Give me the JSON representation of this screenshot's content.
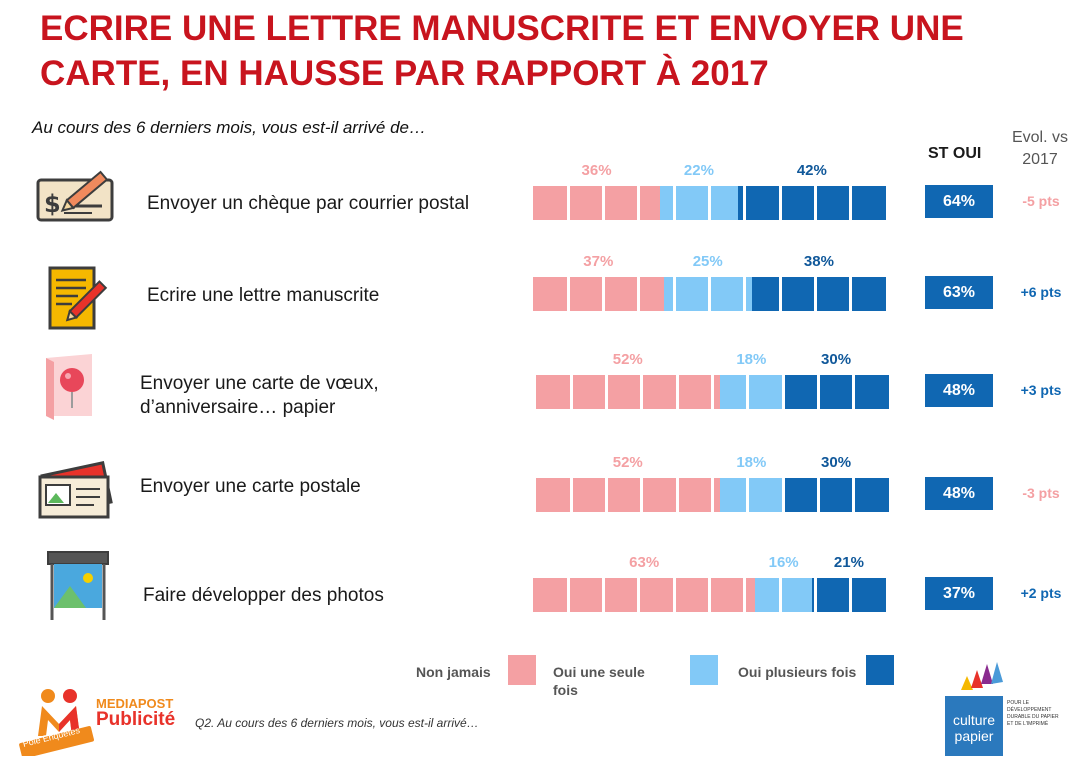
{
  "title": "ECRIRE UNE LETTRE MANUSCRITE ET ENVOYER UNE CARTE, EN HAUSSE PAR RAPPORT À 2017",
  "subtitle": "Au cours des 6 derniers mois, vous est-il arrivé de…",
  "columns": {
    "st_oui": "ST OUI",
    "evol": "Evol. vs 2017"
  },
  "colors": {
    "jamais": "#f4a0a3",
    "une_fois": "#82c9f7",
    "plusieurs": "#1067b2",
    "title": "#c8141e",
    "neg": "#f4a0a3",
    "pos": "#1067b2"
  },
  "rows": [
    {
      "label": "Envoyer un chèque par courrier postal",
      "icon": "check-pen-icon",
      "jamais": 36,
      "une_fois": 22,
      "plusieurs": 42,
      "jamais_label": "36%",
      "une_fois_label": "22%",
      "plusieurs_label": "42%",
      "st_oui": "64%",
      "evol": "-5 pts",
      "evol_sign": "neg"
    },
    {
      "label": "Ecrire une lettre manuscrite",
      "icon": "letter-pencil-icon",
      "jamais": 37,
      "une_fois": 25,
      "plusieurs": 38,
      "jamais_label": "37%",
      "une_fois_label": "25%",
      "plusieurs_label": "38%",
      "st_oui": "63%",
      "evol": "+6 pts",
      "evol_sign": "pos"
    },
    {
      "label": "Envoyer une carte de vœux,\nd’anniversaire… papier",
      "icon": "greeting-card-icon",
      "jamais": 52,
      "une_fois": 18,
      "plusieurs": 30,
      "jamais_label": "52%",
      "une_fois_label": "18%",
      "plusieurs_label": "30%",
      "st_oui": "48%",
      "evol": "+3 pts",
      "evol_sign": "pos"
    },
    {
      "label": "Envoyer une carte postale",
      "icon": "postcard-icon",
      "jamais": 52,
      "une_fois": 18,
      "plusieurs": 30,
      "jamais_label": "52%",
      "une_fois_label": "18%",
      "plusieurs_label": "30%",
      "st_oui": "48%",
      "evol": "-3 pts",
      "evol_sign": "neg"
    },
    {
      "label": "Faire développer des photos",
      "icon": "photo-print-icon",
      "jamais": 63,
      "une_fois": 16,
      "plusieurs": 21,
      "jamais_label": "63%",
      "une_fois_label": "16%",
      "plusieurs_label": "21%",
      "st_oui": "37%",
      "evol": "+2 pts",
      "evol_sign": "pos"
    }
  ],
  "chart_data": {
    "type": "bar",
    "stacked": true,
    "orientation": "horizontal",
    "categories": [
      "Envoyer un chèque par courrier postal",
      "Ecrire une lettre manuscrite",
      "Envoyer une carte de vœux, d’anniversaire… papier",
      "Envoyer une carte postale",
      "Faire développer des photos"
    ],
    "series": [
      {
        "name": "Non jamais",
        "values": [
          36,
          37,
          52,
          52,
          63
        ]
      },
      {
        "name": "Oui une seule fois",
        "values": [
          22,
          25,
          18,
          18,
          16
        ]
      },
      {
        "name": "Oui plusieurs fois",
        "values": [
          42,
          38,
          30,
          30,
          21
        ]
      }
    ],
    "st_oui": [
      64,
      63,
      48,
      48,
      37
    ],
    "evol_vs_2017": [
      -5,
      6,
      3,
      -3,
      2
    ],
    "title": "ECRIRE UNE LETTRE MANUSCRITE ET ENVOYER UNE CARTE, EN HAUSSE PAR RAPPORT À 2017",
    "legend_position": "bottom"
  },
  "legend": [
    {
      "label": "Non jamais",
      "key": "jamais"
    },
    {
      "label": "Oui une seule\nfois",
      "key": "une_fois"
    },
    {
      "label": "Oui plusieurs fois",
      "key": "plusieurs"
    }
  ],
  "footnote": "Q2. Au cours des 6 derniers mois, vous est-il arrivé…",
  "logos": {
    "mediapost_top": "MEDIAPOST",
    "mediapost_bottom": "Publicité",
    "pole": "Pôle Enquêtes",
    "culture_1": "culture",
    "culture_2": "papier",
    "culture_tag": "POUR LE DÉVELOPPEMENT DURABLE DU PAPIER ET DE L'IMPRIMÉ"
  }
}
